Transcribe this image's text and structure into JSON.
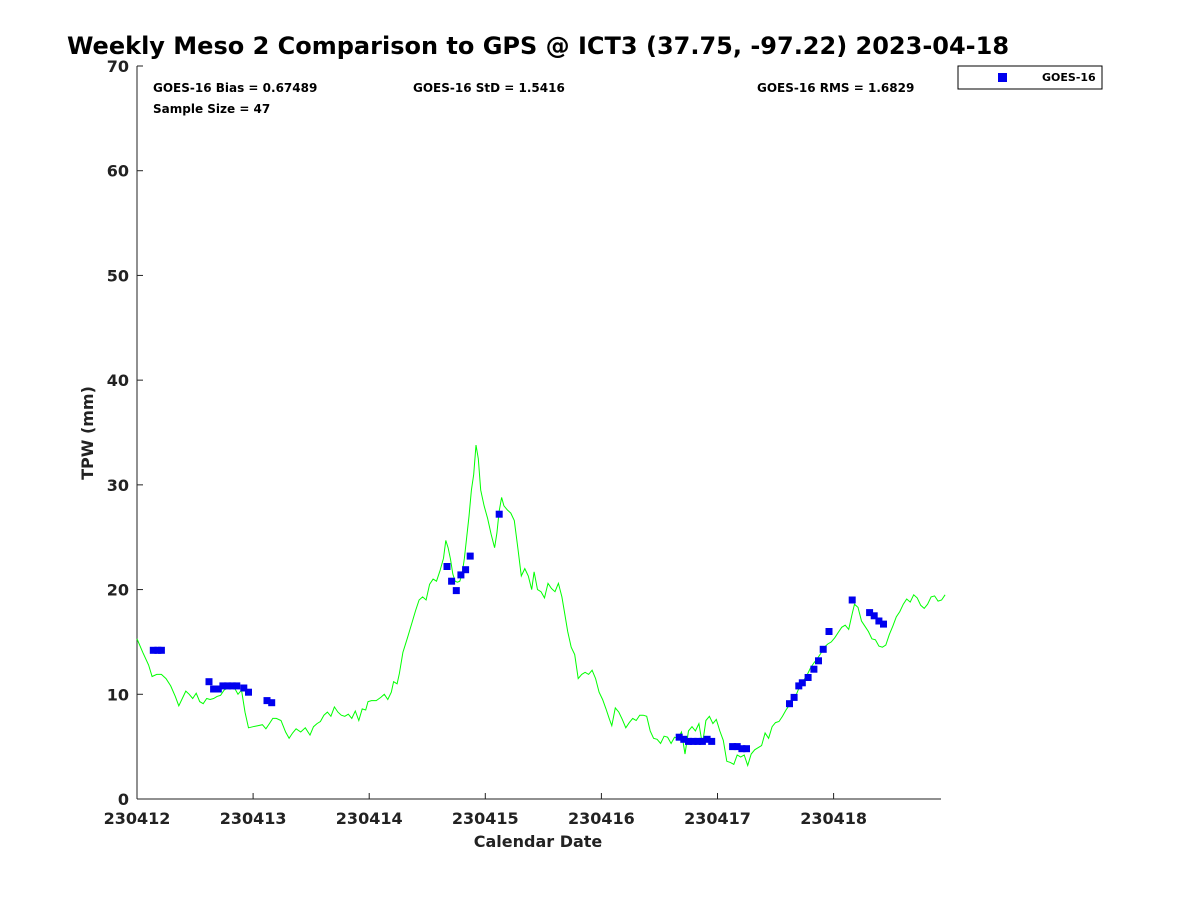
{
  "chart_data": {
    "type": "scatter",
    "title": "Weekly Meso 2 Comparison to GPS @ ICT3 (37.75, -97.22) 2023-04-18",
    "xlabel": "Calendar Date",
    "ylabel": "TPW (mm)",
    "xlim": [
      0,
      6.96
    ],
    "ylim": [
      0,
      70
    ],
    "x_ticks": [
      {
        "value": 0,
        "label": "230412"
      },
      {
        "value": 1,
        "label": "230413"
      },
      {
        "value": 2,
        "label": "230414"
      },
      {
        "value": 3,
        "label": "230415"
      },
      {
        "value": 4,
        "label": "230416"
      },
      {
        "value": 5,
        "label": "230417"
      },
      {
        "value": 6,
        "label": "230418"
      }
    ],
    "y_ticks": [
      0,
      10,
      20,
      30,
      40,
      50,
      60,
      70
    ],
    "grid": false,
    "legend": {
      "position": "top-right",
      "entries": [
        "GOES-16"
      ]
    },
    "stats": {
      "bias": "GOES-16 Bias = 0.67489",
      "std": "GOES-16 StD = 1.5416",
      "rms": "GOES-16 RMS = 1.6829",
      "sample": "Sample Size = 47"
    },
    "colors": {
      "gps_line": "#00ff00",
      "goes_marker": "#0000ee"
    },
    "series": [
      {
        "name": "GPS",
        "type": "line",
        "points": [
          [
            0.0,
            15.3
          ],
          [
            0.05,
            14.0
          ],
          [
            0.1,
            12.8
          ],
          [
            0.13,
            11.7
          ],
          [
            0.17,
            11.9
          ],
          [
            0.21,
            11.9
          ],
          [
            0.25,
            11.5
          ],
          [
            0.29,
            10.8
          ],
          [
            0.33,
            9.8
          ],
          [
            0.36,
            8.9
          ],
          [
            0.39,
            9.6
          ],
          [
            0.42,
            10.3
          ],
          [
            0.45,
            10.0
          ],
          [
            0.48,
            9.6
          ],
          [
            0.51,
            10.1
          ],
          [
            0.54,
            9.3
          ],
          [
            0.57,
            9.1
          ],
          [
            0.6,
            9.6
          ],
          [
            0.63,
            9.5
          ],
          [
            0.66,
            9.6
          ],
          [
            0.69,
            9.8
          ],
          [
            0.72,
            9.9
          ],
          [
            0.75,
            10.4
          ],
          [
            0.78,
            10.6
          ],
          [
            0.81,
            10.8
          ],
          [
            0.84,
            10.6
          ],
          [
            0.87,
            10.0
          ],
          [
            0.9,
            10.4
          ],
          [
            0.93,
            8.3
          ],
          [
            0.96,
            6.8
          ],
          [
            1.0,
            6.9
          ],
          [
            1.04,
            7.0
          ],
          [
            1.08,
            7.1
          ],
          [
            1.11,
            6.7
          ],
          [
            1.14,
            7.2
          ],
          [
            1.17,
            7.7
          ],
          [
            1.2,
            7.7
          ],
          [
            1.24,
            7.5
          ],
          [
            1.28,
            6.4
          ],
          [
            1.31,
            5.8
          ],
          [
            1.34,
            6.3
          ],
          [
            1.37,
            6.7
          ],
          [
            1.41,
            6.4
          ],
          [
            1.45,
            6.8
          ],
          [
            1.49,
            6.1
          ],
          [
            1.52,
            6.9
          ],
          [
            1.55,
            7.2
          ],
          [
            1.58,
            7.4
          ],
          [
            1.61,
            8.0
          ],
          [
            1.64,
            8.3
          ],
          [
            1.67,
            7.9
          ],
          [
            1.7,
            8.8
          ],
          [
            1.73,
            8.3
          ],
          [
            1.76,
            8.0
          ],
          [
            1.79,
            7.9
          ],
          [
            1.82,
            8.1
          ],
          [
            1.85,
            7.7
          ],
          [
            1.88,
            8.4
          ],
          [
            1.91,
            7.5
          ],
          [
            1.94,
            8.6
          ],
          [
            1.97,
            8.5
          ],
          [
            1.99,
            9.3
          ],
          [
            2.02,
            9.4
          ],
          [
            2.06,
            9.4
          ],
          [
            2.1,
            9.7
          ],
          [
            2.13,
            10.0
          ],
          [
            2.16,
            9.5
          ],
          [
            2.19,
            10.2
          ],
          [
            2.21,
            11.2
          ],
          [
            2.24,
            11.0
          ],
          [
            2.26,
            12.0
          ],
          [
            2.29,
            14.0
          ],
          [
            2.33,
            15.4
          ],
          [
            2.37,
            16.9
          ],
          [
            2.4,
            18.0
          ],
          [
            2.43,
            19.0
          ],
          [
            2.46,
            19.3
          ],
          [
            2.49,
            19.0
          ],
          [
            2.52,
            20.5
          ],
          [
            2.55,
            21.0
          ],
          [
            2.58,
            20.8
          ],
          [
            2.61,
            21.8
          ],
          [
            2.64,
            23.0
          ],
          [
            2.66,
            24.7
          ],
          [
            2.68,
            24.0
          ],
          [
            2.7,
            22.9
          ],
          [
            2.72,
            21.5
          ],
          [
            2.74,
            20.8
          ],
          [
            2.76,
            20.7
          ],
          [
            2.78,
            20.8
          ],
          [
            2.8,
            21.5
          ],
          [
            2.82,
            23.0
          ],
          [
            2.84,
            25.0
          ],
          [
            2.86,
            27.0
          ],
          [
            2.88,
            29.5
          ],
          [
            2.9,
            31.0
          ],
          [
            2.92,
            33.8
          ],
          [
            2.94,
            32.5
          ],
          [
            2.96,
            29.5
          ],
          [
            2.99,
            28.0
          ],
          [
            3.02,
            26.8
          ],
          [
            3.05,
            25.3
          ],
          [
            3.08,
            24.0
          ],
          [
            3.1,
            25.4
          ],
          [
            3.12,
            27.5
          ],
          [
            3.14,
            28.8
          ],
          [
            3.16,
            28.0
          ],
          [
            3.19,
            27.6
          ],
          [
            3.22,
            27.3
          ],
          [
            3.25,
            26.6
          ],
          [
            3.28,
            24.0
          ],
          [
            3.31,
            21.3
          ],
          [
            3.34,
            22.0
          ],
          [
            3.37,
            21.3
          ],
          [
            3.4,
            20.0
          ],
          [
            3.42,
            21.7
          ],
          [
            3.45,
            20.0
          ],
          [
            3.48,
            19.8
          ],
          [
            3.51,
            19.2
          ],
          [
            3.54,
            20.6
          ],
          [
            3.57,
            20.1
          ],
          [
            3.6,
            19.8
          ],
          [
            3.63,
            20.6
          ],
          [
            3.66,
            19.3
          ],
          [
            3.68,
            18.0
          ],
          [
            3.71,
            16.0
          ],
          [
            3.74,
            14.5
          ],
          [
            3.77,
            13.8
          ],
          [
            3.8,
            11.5
          ],
          [
            3.83,
            11.9
          ],
          [
            3.86,
            12.1
          ],
          [
            3.89,
            11.9
          ],
          [
            3.92,
            12.3
          ],
          [
            3.95,
            11.5
          ],
          [
            3.98,
            10.2
          ],
          [
            4.01,
            9.5
          ],
          [
            4.04,
            8.6
          ],
          [
            4.07,
            7.6
          ],
          [
            4.09,
            7.0
          ],
          [
            4.12,
            8.7
          ],
          [
            4.15,
            8.3
          ],
          [
            4.18,
            7.6
          ],
          [
            4.21,
            6.8
          ],
          [
            4.24,
            7.3
          ],
          [
            4.27,
            7.7
          ],
          [
            4.3,
            7.5
          ],
          [
            4.33,
            8.0
          ],
          [
            4.36,
            8.0
          ],
          [
            4.39,
            7.9
          ],
          [
            4.42,
            6.5
          ],
          [
            4.45,
            5.8
          ],
          [
            4.48,
            5.7
          ],
          [
            4.51,
            5.3
          ],
          [
            4.54,
            6.0
          ],
          [
            4.57,
            5.9
          ],
          [
            4.6,
            5.3
          ],
          [
            4.63,
            5.9
          ],
          [
            4.66,
            5.8
          ],
          [
            4.69,
            6.4
          ],
          [
            4.72,
            4.3
          ],
          [
            4.75,
            6.5
          ],
          [
            4.78,
            6.9
          ],
          [
            4.81,
            6.5
          ],
          [
            4.84,
            7.2
          ],
          [
            4.87,
            5.2
          ],
          [
            4.9,
            7.5
          ],
          [
            4.93,
            7.9
          ],
          [
            4.96,
            7.2
          ],
          [
            4.99,
            7.6
          ],
          [
            5.02,
            6.5
          ],
          [
            5.05,
            5.6
          ],
          [
            5.08,
            3.6
          ],
          [
            5.11,
            3.5
          ],
          [
            5.14,
            3.3
          ],
          [
            5.17,
            4.2
          ],
          [
            5.2,
            4.0
          ],
          [
            5.23,
            4.2
          ],
          [
            5.26,
            3.2
          ],
          [
            5.29,
            4.3
          ],
          [
            5.32,
            4.7
          ],
          [
            5.35,
            4.9
          ],
          [
            5.38,
            5.1
          ],
          [
            5.41,
            6.3
          ],
          [
            5.44,
            5.8
          ],
          [
            5.47,
            6.9
          ],
          [
            5.5,
            7.3
          ],
          [
            5.53,
            7.4
          ],
          [
            5.56,
            7.9
          ],
          [
            5.59,
            8.5
          ],
          [
            5.62,
            9.0
          ],
          [
            5.65,
            9.5
          ],
          [
            5.68,
            10.0
          ],
          [
            5.71,
            10.8
          ],
          [
            5.74,
            11.3
          ],
          [
            5.77,
            11.8
          ],
          [
            5.8,
            12.5
          ],
          [
            5.83,
            13.0
          ],
          [
            5.86,
            13.4
          ],
          [
            5.89,
            13.9
          ],
          [
            5.92,
            14.5
          ],
          [
            5.95,
            14.8
          ],
          [
            5.98,
            15.0
          ],
          [
            6.01,
            15.4
          ],
          [
            6.04,
            15.9
          ],
          [
            6.07,
            16.4
          ],
          [
            6.1,
            16.6
          ],
          [
            6.13,
            16.2
          ],
          [
            6.16,
            17.7
          ],
          [
            6.18,
            18.6
          ],
          [
            6.21,
            18.3
          ],
          [
            6.24,
            17.0
          ],
          [
            6.27,
            16.5
          ],
          [
            6.3,
            16.0
          ],
          [
            6.33,
            15.3
          ],
          [
            6.36,
            15.2
          ],
          [
            6.39,
            14.6
          ],
          [
            6.42,
            14.5
          ],
          [
            6.45,
            14.7
          ],
          [
            6.48,
            15.7
          ],
          [
            6.51,
            16.5
          ],
          [
            6.54,
            17.4
          ],
          [
            6.57,
            17.9
          ],
          [
            6.6,
            18.6
          ],
          [
            6.63,
            19.1
          ],
          [
            6.66,
            18.8
          ],
          [
            6.69,
            19.5
          ],
          [
            6.72,
            19.2
          ],
          [
            6.75,
            18.5
          ],
          [
            6.78,
            18.2
          ],
          [
            6.81,
            18.6
          ],
          [
            6.84,
            19.3
          ],
          [
            6.87,
            19.4
          ],
          [
            6.9,
            18.9
          ],
          [
            6.93,
            19.0
          ],
          [
            6.96,
            19.5
          ]
        ]
      },
      {
        "name": "GOES-16",
        "type": "scatter",
        "points": [
          [
            0.14,
            14.2
          ],
          [
            0.18,
            14.2
          ],
          [
            0.21,
            14.2
          ],
          [
            0.62,
            11.2
          ],
          [
            0.66,
            10.5
          ],
          [
            0.7,
            10.5
          ],
          [
            0.74,
            10.8
          ],
          [
            0.78,
            10.8
          ],
          [
            0.82,
            10.8
          ],
          [
            0.86,
            10.8
          ],
          [
            0.92,
            10.6
          ],
          [
            0.96,
            10.2
          ],
          [
            1.12,
            9.4
          ],
          [
            1.16,
            9.2
          ],
          [
            2.67,
            22.2
          ],
          [
            2.71,
            20.8
          ],
          [
            2.75,
            19.9
          ],
          [
            2.79,
            21.4
          ],
          [
            2.83,
            21.9
          ],
          [
            2.87,
            23.2
          ],
          [
            3.12,
            27.2
          ],
          [
            4.67,
            5.9
          ],
          [
            4.71,
            5.7
          ],
          [
            4.75,
            5.5
          ],
          [
            4.79,
            5.5
          ],
          [
            4.83,
            5.5
          ],
          [
            4.87,
            5.5
          ],
          [
            4.91,
            5.7
          ],
          [
            4.95,
            5.5
          ],
          [
            5.13,
            5.0
          ],
          [
            5.17,
            5.0
          ],
          [
            5.21,
            4.8
          ],
          [
            5.25,
            4.8
          ],
          [
            5.62,
            9.1
          ],
          [
            5.66,
            9.7
          ],
          [
            5.7,
            10.8
          ],
          [
            5.73,
            11.1
          ],
          [
            5.78,
            11.6
          ],
          [
            5.83,
            12.4
          ],
          [
            5.87,
            13.2
          ],
          [
            5.91,
            14.3
          ],
          [
            5.96,
            16.0
          ],
          [
            6.16,
            19.0
          ],
          [
            6.31,
            17.8
          ],
          [
            6.35,
            17.5
          ],
          [
            6.39,
            17.0
          ],
          [
            6.43,
            16.7
          ]
        ]
      }
    ]
  }
}
